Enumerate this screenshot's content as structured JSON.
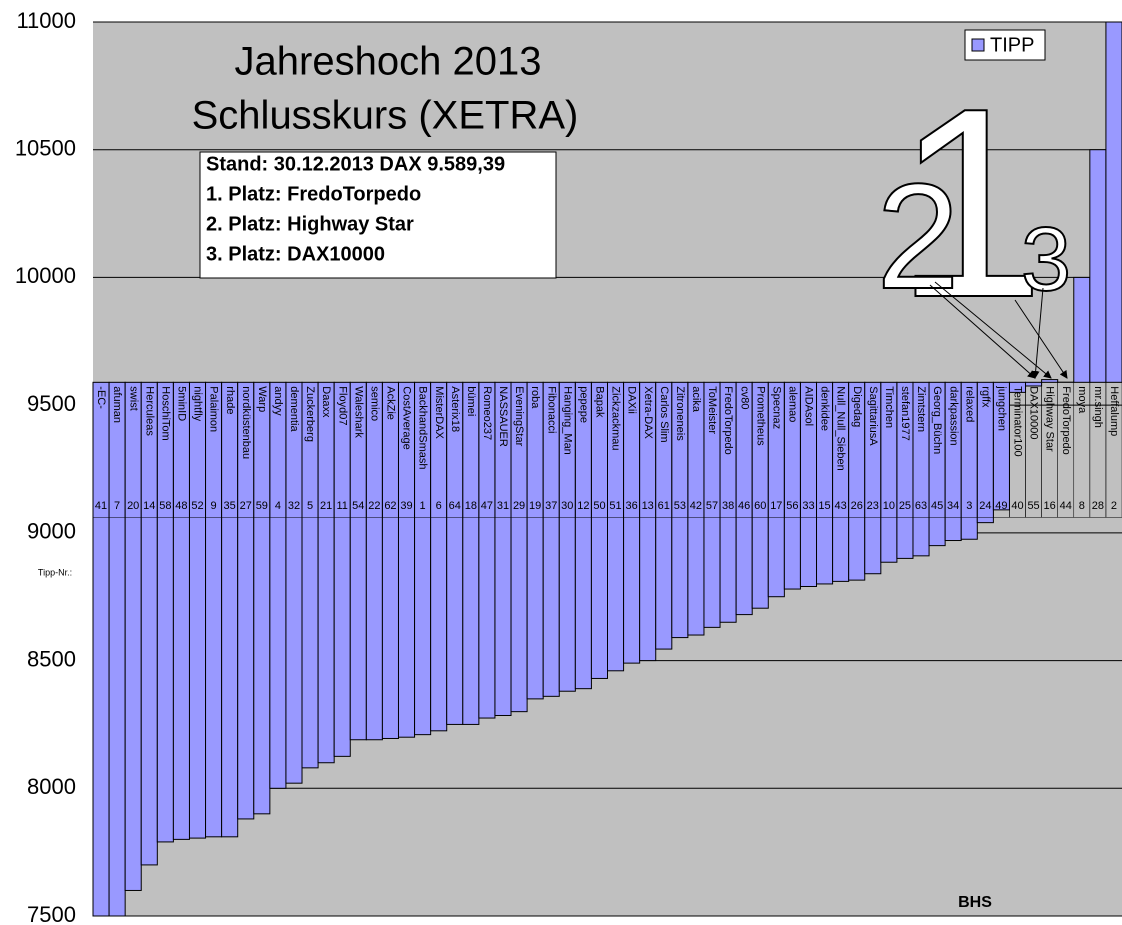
{
  "chart_data": {
    "type": "bar",
    "title": [
      "Jahreshoch 2013",
      "Schlusskurs (XETRA)"
    ],
    "annotation": [
      "Stand: 30.12.2013 DAX 9.589,39",
      "1. Platz: FredoTorpedo",
      "2. Platz: Highway Star",
      "3. Platz: DAX10000"
    ],
    "rank_markers": [
      "1",
      "2",
      "3"
    ],
    "signature": "BHS",
    "number_label": "Tipp-Nr.:",
    "baseline": 9589.39,
    "categories": [
      "-EC-",
      "afuman",
      "swist",
      "Herculeas",
      "HoschiTom",
      "5minID",
      "nightfly",
      "Palaimon",
      "rhade",
      "nordküstenbau",
      "Warp",
      "andyy",
      "dementia",
      "Zuckerberg",
      "Daaxx",
      "Floyd07",
      "Waleshark",
      "semico",
      "AckZie",
      "CostAverage",
      "BackhandSmash",
      "MisterDAX",
      "Asterix18",
      "bümei",
      "Romeo237",
      "NASSAUER",
      "EveningStar",
      "roba",
      "Fibonacci",
      "Hanging_Man",
      "pepepe",
      "Bapak",
      "Zickzackmau",
      "DAXii",
      "Xetra-DAX",
      "Carlos Slim",
      "Zitroneneis",
      "acika",
      "ToMeister",
      "FredoTorpedo",
      "cv80",
      "Prometheus",
      "Specnaz",
      "alemao",
      "AIDAsol",
      "denkidee",
      "Null_Null_Sieben",
      "Digedag",
      "SagittariusA",
      "Timchen",
      "stefan1977",
      "Zimtstern",
      "Georg_Büchn",
      "darkpassion",
      "relaxed",
      "rgffx",
      "jungchen",
      "Terminator100",
      "DAX10000",
      "Highway Star",
      "FredoTorpedo",
      "moya",
      "mr.singh",
      "Heffalump"
    ],
    "category_numbers": [
      "41",
      "7",
      "20",
      "14",
      "58",
      "48",
      "52",
      "9",
      "35",
      "27",
      "59",
      "4",
      "32",
      "5",
      "21",
      "11",
      "54",
      "22",
      "62",
      "39",
      "1",
      "6",
      "64",
      "18",
      "47",
      "31",
      "29",
      "19",
      "37",
      "30",
      "12",
      "50",
      "51",
      "36",
      "13",
      "61",
      "53",
      "42",
      "57",
      "38",
      "46",
      "60",
      "17",
      "56",
      "33",
      "15",
      "43",
      "26",
      "23",
      "10",
      "25",
      "63",
      "45",
      "34",
      "3",
      "24",
      "49",
      "40",
      "55",
      "16",
      "44",
      "8",
      "28",
      "2"
    ],
    "series": [
      {
        "name": "TIPP",
        "color": "#9999ff",
        "values": [
          7500,
          7500,
          7600,
          7700,
          7790,
          7800,
          7805,
          7810,
          7810,
          7880,
          7900,
          8000,
          8020,
          8080,
          8100,
          8125,
          8190,
          8190,
          8195,
          8200,
          8210,
          8225,
          8250,
          8250,
          8275,
          8285,
          8300,
          8350,
          8360,
          8380,
          8390,
          8430,
          8460,
          8490,
          8500,
          8545,
          8590,
          8600,
          8630,
          8650,
          8680,
          8705,
          8750,
          8780,
          8790,
          8800,
          8810,
          8815,
          8840,
          8885,
          8900,
          8910,
          8950,
          8970,
          8975,
          9040,
          9090,
          9550,
          9575,
          9600,
          9590,
          10000,
          10500,
          11000
        ]
      }
    ],
    "ylim": [
      7500,
      11000
    ],
    "yticks": [
      7500,
      8000,
      8500,
      9000,
      9500,
      10000,
      10500,
      11000
    ],
    "grid": true,
    "legend": "top-right",
    "background": "#c0c0c0"
  }
}
